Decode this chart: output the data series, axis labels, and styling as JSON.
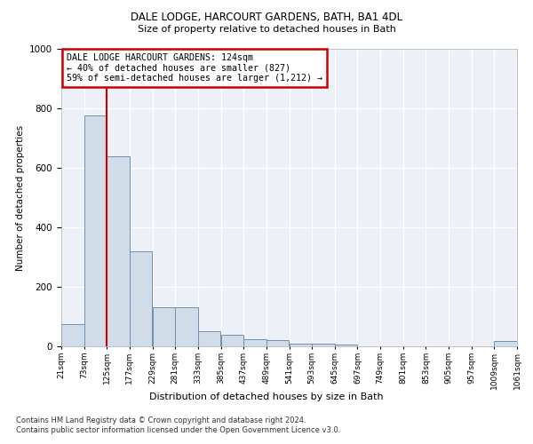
{
  "title1": "DALE LODGE, HARCOURT GARDENS, BATH, BA1 4DL",
  "title2": "Size of property relative to detached houses in Bath",
  "xlabel": "Distribution of detached houses by size in Bath",
  "ylabel": "Number of detached properties",
  "bar_color": "#d0dce8",
  "bar_edge_color": "#7090b0",
  "annotation_box_color": "#cc0000",
  "property_line_color": "#cc0000",
  "annotation_text": "DALE LODGE HARCOURT GARDENS: 124sqm\n← 40% of detached houses are smaller (827)\n59% of semi-detached houses are larger (1,212) →",
  "footer1": "Contains HM Land Registry data © Crown copyright and database right 2024.",
  "footer2": "Contains public sector information licensed under the Open Government Licence v3.0.",
  "bin_edges": [
    21,
    73,
    125,
    177,
    229,
    281,
    333,
    385,
    437,
    489,
    541,
    593,
    645,
    697,
    749,
    801,
    853,
    905,
    957,
    1009,
    1061
  ],
  "bar_heights": [
    75,
    775,
    640,
    320,
    130,
    130,
    50,
    40,
    25,
    20,
    10,
    8,
    5,
    0,
    0,
    0,
    0,
    0,
    0,
    18
  ],
  "ylim": [
    0,
    1000
  ],
  "yticks": [
    0,
    200,
    400,
    600,
    800,
    1000
  ],
  "background_color": "#edf1f7",
  "grid_color": "#ffffff",
  "property_line_x": 125
}
